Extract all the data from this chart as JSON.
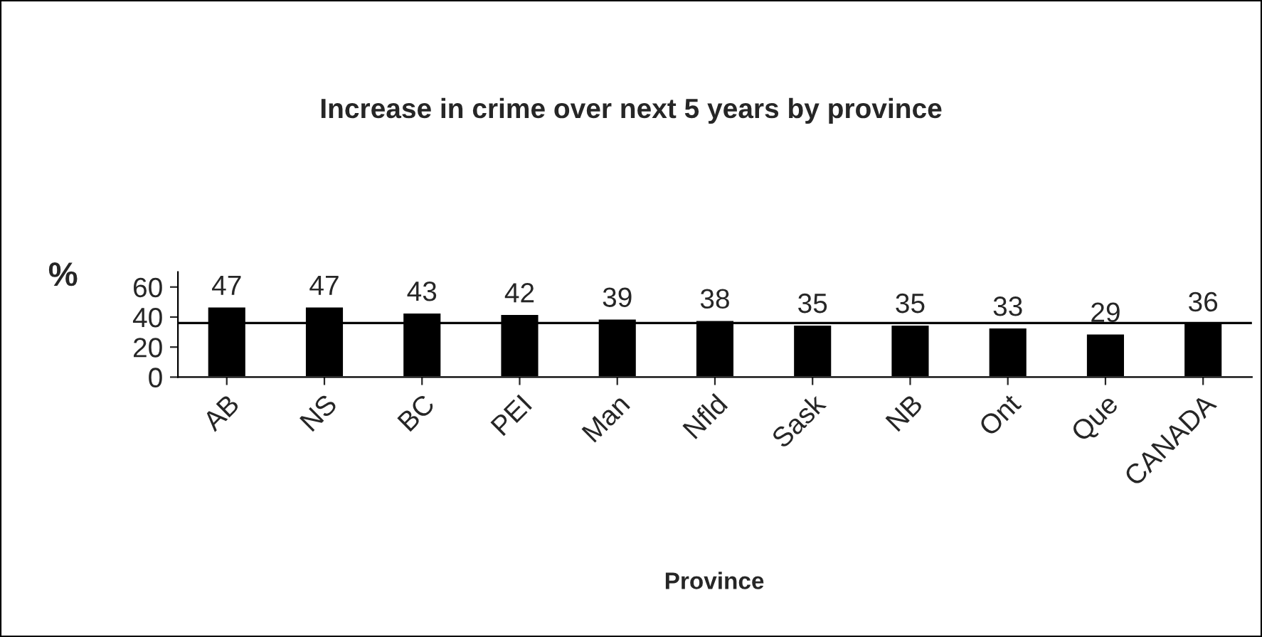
{
  "chart_data": {
    "type": "bar",
    "title": "Increase in crime over next 5 years by province",
    "xlabel": "Province",
    "ylabel": "%",
    "categories": [
      "AB",
      "NS",
      "BC",
      "PEI",
      "Man",
      "Nfld",
      "Sask",
      "NB",
      "Ont",
      "Que",
      "CANADA"
    ],
    "values": [
      47,
      47,
      43,
      42,
      39,
      38,
      35,
      35,
      33,
      29,
      36
    ],
    "color": "#000000",
    "ylim": [
      0,
      70
    ],
    "yticks": [
      0,
      20,
      40,
      60
    ],
    "data_labels": true,
    "grid": false,
    "legend": false,
    "ref_lines": [
      {
        "axis": "y",
        "value": 36,
        "color": "#000000",
        "line_style": "solid"
      }
    ]
  }
}
